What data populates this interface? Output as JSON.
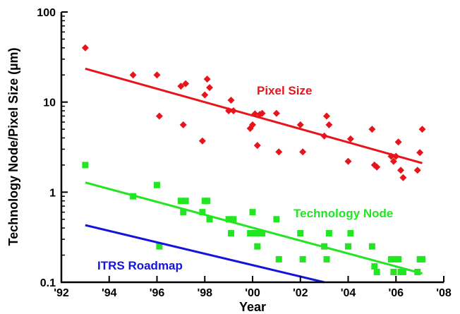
{
  "chart_data": {
    "type": "scatter",
    "title": "",
    "xlabel": "Year",
    "ylabel": "Technology Node/Pixel Size (µm)",
    "x_scale": "linear",
    "y_scale": "log",
    "xlim": [
      1992,
      2008
    ],
    "ylim": [
      0.1,
      100
    ],
    "x_ticks": [
      1992,
      1994,
      1996,
      1998,
      2000,
      2002,
      2004,
      2006,
      2008
    ],
    "x_tick_labels": [
      "'92",
      "'94",
      "'96",
      "'98",
      "'00",
      "'02",
      "'04",
      "'06",
      "'08"
    ],
    "y_ticks": [
      0.1,
      1,
      10,
      100
    ],
    "y_tick_labels": [
      "0.1",
      "1",
      "10",
      "100"
    ],
    "grid": false,
    "series": [
      {
        "name": "Pixel Size",
        "color": "#e8141c",
        "marker": "diamond",
        "points": [
          [
            1993,
            40
          ],
          [
            1995,
            20
          ],
          [
            1996,
            20
          ],
          [
            1996.1,
            7
          ],
          [
            1997,
            15
          ],
          [
            1997.1,
            5.6
          ],
          [
            1997.2,
            16
          ],
          [
            1997.9,
            3.7
          ],
          [
            1998,
            12
          ],
          [
            1998.1,
            18
          ],
          [
            1998.2,
            14.5
          ],
          [
            1999,
            8
          ],
          [
            1999.1,
            10.5
          ],
          [
            1999.2,
            8
          ],
          [
            1999.9,
            5.1
          ],
          [
            2000,
            5.6
          ],
          [
            2000.1,
            7.4
          ],
          [
            2000.2,
            3.3
          ],
          [
            2000.3,
            7.3
          ],
          [
            2000.4,
            7.5
          ],
          [
            2001,
            7.5
          ],
          [
            2001.1,
            2.8
          ],
          [
            2002,
            5.6
          ],
          [
            2002.1,
            2.8
          ],
          [
            2003,
            4.2
          ],
          [
            2003.1,
            7
          ],
          [
            2003.2,
            5.6
          ],
          [
            2004,
            2.2
          ],
          [
            2004.1,
            3.9
          ],
          [
            2005,
            5
          ],
          [
            2005.1,
            2
          ],
          [
            2005.2,
            1.9
          ],
          [
            2005.8,
            2.5
          ],
          [
            2005.9,
            2.2
          ],
          [
            2006,
            2.5
          ],
          [
            2006.1,
            3.6
          ],
          [
            2006.2,
            1.75
          ],
          [
            2006.3,
            1.45
          ],
          [
            2006.9,
            1.75
          ],
          [
            2007,
            2.75
          ],
          [
            2007.1,
            5
          ]
        ],
        "trend": [
          [
            1993,
            23.5
          ],
          [
            2007.1,
            2.1
          ]
        ]
      },
      {
        "name": "Technology Node",
        "color": "#22e622",
        "marker": "square",
        "points": [
          [
            1993,
            2
          ],
          [
            1995,
            0.9
          ],
          [
            1996,
            1.2
          ],
          [
            1996.1,
            0.25
          ],
          [
            1997,
            0.8
          ],
          [
            1997.1,
            0.6
          ],
          [
            1997.2,
            0.8
          ],
          [
            1997.9,
            0.6
          ],
          [
            1998,
            0.8
          ],
          [
            1998.1,
            0.8
          ],
          [
            1998.2,
            0.5
          ],
          [
            1999,
            0.5
          ],
          [
            1999.1,
            0.35
          ],
          [
            1999.2,
            0.5
          ],
          [
            1999.9,
            0.35
          ],
          [
            2000,
            0.6
          ],
          [
            2000.1,
            0.35
          ],
          [
            2000.2,
            0.25
          ],
          [
            2000.3,
            0.35
          ],
          [
            2000.4,
            0.35
          ],
          [
            2001,
            0.5
          ],
          [
            2001.1,
            0.18
          ],
          [
            2002,
            0.35
          ],
          [
            2002.1,
            0.18
          ],
          [
            2003,
            0.25
          ],
          [
            2003.1,
            0.18
          ],
          [
            2003.2,
            0.35
          ],
          [
            2004,
            0.25
          ],
          [
            2004.1,
            0.35
          ],
          [
            2005,
            0.25
          ],
          [
            2005.1,
            0.15
          ],
          [
            2005.2,
            0.13
          ],
          [
            2005.8,
            0.18
          ],
          [
            2005.9,
            0.13
          ],
          [
            2006,
            0.18
          ],
          [
            2006.1,
            0.18
          ],
          [
            2006.2,
            0.13
          ],
          [
            2006.3,
            0.13
          ],
          [
            2006.9,
            0.13
          ],
          [
            2007,
            0.18
          ],
          [
            2007.1,
            0.18
          ]
        ],
        "trend": [
          [
            1993,
            1.28
          ],
          [
            2007.1,
            0.125
          ]
        ]
      },
      {
        "name": "ITRS Roadmap",
        "color": "#1414dc",
        "marker": "none",
        "points": [],
        "trend": [
          [
            1993,
            0.43
          ],
          [
            2003,
            0.1
          ]
        ]
      }
    ]
  }
}
